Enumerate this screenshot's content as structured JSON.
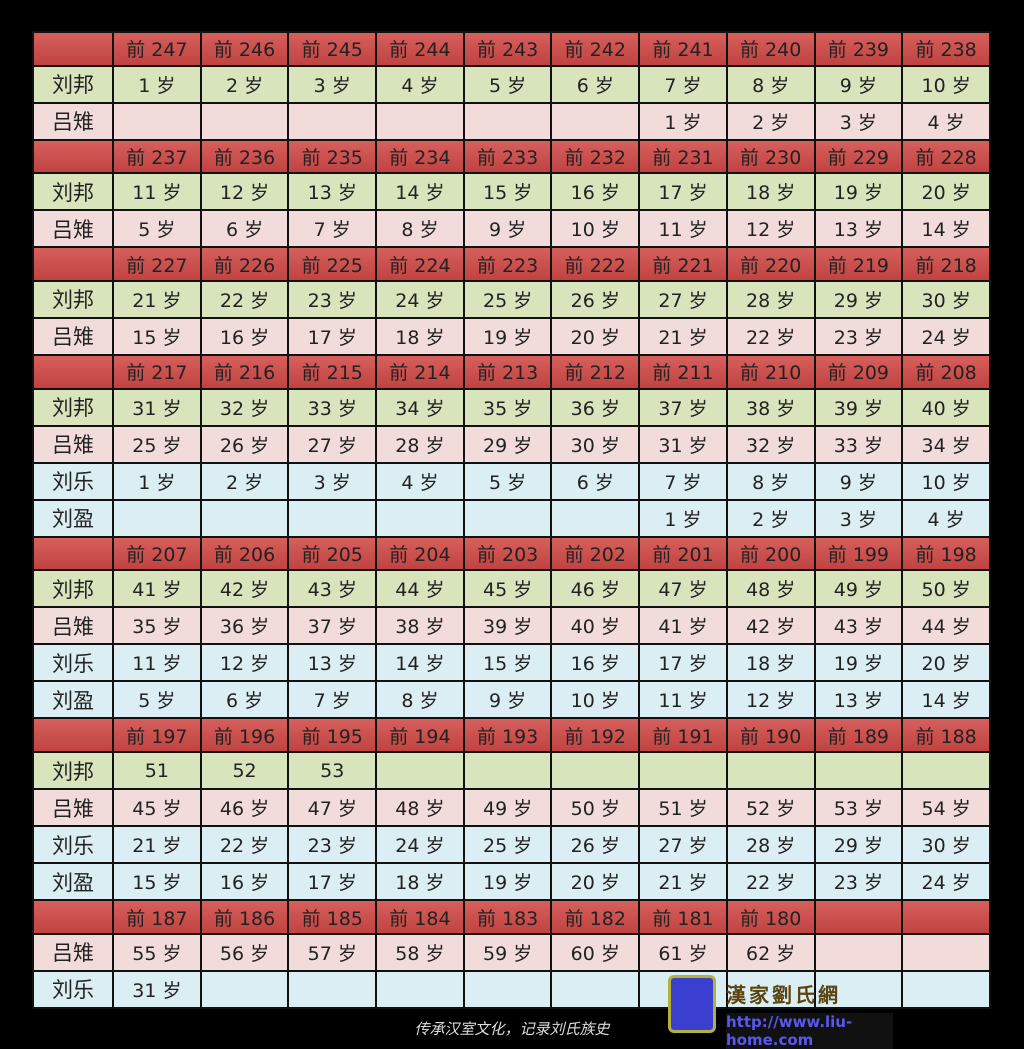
{
  "colors": {
    "header": "#c9504f",
    "liubang": "#d8e4bc",
    "lvzhi": "#f2dcdb",
    "liule": "#dbeef3",
    "liuying": "#dbeef3"
  },
  "rows": [
    {
      "type": "h",
      "label": "",
      "cells": [
        "前 247",
        "前 246",
        "前 245",
        "前 244",
        "前 243",
        "前 242",
        "前 241",
        "前 240",
        "前 239",
        "前 238"
      ]
    },
    {
      "type": "liubang",
      "label": "刘邦",
      "cells": [
        "1 岁",
        "2 岁",
        "3 岁",
        "4 岁",
        "5 岁",
        "6 岁",
        "7 岁",
        "8 岁",
        "9 岁",
        "10 岁"
      ]
    },
    {
      "type": "lvzhi",
      "label": "吕雉",
      "cells": [
        "",
        "",
        "",
        "",
        "",
        "",
        "1 岁",
        "2 岁",
        "3 岁",
        "4 岁"
      ]
    },
    {
      "type": "h",
      "label": "",
      "cells": [
        "前 237",
        "前 236",
        "前 235",
        "前 234",
        "前 233",
        "前 232",
        "前 231",
        "前 230",
        "前 229",
        "前 228"
      ]
    },
    {
      "type": "liubang",
      "label": "刘邦",
      "cells": [
        "11 岁",
        "12 岁",
        "13 岁",
        "14 岁",
        "15 岁",
        "16 岁",
        "17 岁",
        "18 岁",
        "19 岁",
        "20 岁"
      ]
    },
    {
      "type": "lvzhi",
      "label": "吕雉",
      "cells": [
        "5 岁",
        "6 岁",
        "7 岁",
        "8 岁",
        "9 岁",
        "10 岁",
        "11 岁",
        "12 岁",
        "13 岁",
        "14 岁"
      ]
    },
    {
      "type": "h",
      "label": "",
      "cells": [
        "前 227",
        "前 226",
        "前 225",
        "前 224",
        "前 223",
        "前 222",
        "前 221",
        "前 220",
        "前 219",
        "前 218"
      ]
    },
    {
      "type": "liubang",
      "label": "刘邦",
      "cells": [
        "21 岁",
        "22 岁",
        "23 岁",
        "24 岁",
        "25 岁",
        "26 岁",
        "27 岁",
        "28 岁",
        "29 岁",
        "30 岁"
      ]
    },
    {
      "type": "lvzhi",
      "label": "吕雉",
      "cells": [
        "15 岁",
        "16 岁",
        "17 岁",
        "18 岁",
        "19 岁",
        "20 岁",
        "21 岁",
        "22 岁",
        "23 岁",
        "24 岁"
      ]
    },
    {
      "type": "h",
      "label": "",
      "cells": [
        "前 217",
        "前 216",
        "前 215",
        "前 214",
        "前 213",
        "前 212",
        "前 211",
        "前 210",
        "前 209",
        "前 208"
      ]
    },
    {
      "type": "liubang",
      "label": "刘邦",
      "cells": [
        "31 岁",
        "32 岁",
        "33 岁",
        "34 岁",
        "35 岁",
        "36 岁",
        "37 岁",
        "38 岁",
        "39 岁",
        "40 岁"
      ]
    },
    {
      "type": "lvzhi",
      "label": "吕雉",
      "cells": [
        "25 岁",
        "26 岁",
        "27 岁",
        "28 岁",
        "29 岁",
        "30 岁",
        "31 岁",
        "32 岁",
        "33 岁",
        "34 岁"
      ]
    },
    {
      "type": "liule",
      "label": "刘乐",
      "cells": [
        "1 岁",
        "2 岁",
        "3 岁",
        "4 岁",
        "5 岁",
        "6 岁",
        "7 岁",
        "8 岁",
        "9 岁",
        "10 岁"
      ]
    },
    {
      "type": "liuying",
      "label": "刘盈",
      "cells": [
        "",
        "",
        "",
        "",
        "",
        "",
        "1 岁",
        "2 岁",
        "3 岁",
        "4 岁"
      ]
    },
    {
      "type": "h",
      "label": "",
      "cells": [
        "前 207",
        "前 206",
        "前 205",
        "前 204",
        "前 203",
        "前 202",
        "前 201",
        "前 200",
        "前 199",
        "前 198"
      ]
    },
    {
      "type": "liubang",
      "label": "刘邦",
      "cells": [
        "41 岁",
        "42 岁",
        "43 岁",
        "44 岁",
        "45 岁",
        "46 岁",
        "47 岁",
        "48 岁",
        "49 岁",
        "50 岁"
      ]
    },
    {
      "type": "lvzhi",
      "label": "吕雉",
      "cells": [
        "35 岁",
        "36 岁",
        "37 岁",
        "38 岁",
        "39 岁",
        "40 岁",
        "41 岁",
        "42 岁",
        "43 岁",
        "44 岁"
      ]
    },
    {
      "type": "liule",
      "label": "刘乐",
      "cells": [
        "11 岁",
        "12 岁",
        "13 岁",
        "14 岁",
        "15 岁",
        "16 岁",
        "17 岁",
        "18 岁",
        "19 岁",
        "20 岁"
      ]
    },
    {
      "type": "liuying",
      "label": "刘盈",
      "cells": [
        "5 岁",
        "6 岁",
        "7 岁",
        "8 岁",
        "9 岁",
        "10 岁",
        "11 岁",
        "12 岁",
        "13 岁",
        "14 岁"
      ]
    },
    {
      "type": "h",
      "label": "",
      "cells": [
        "前 197",
        "前 196",
        "前 195",
        "前 194",
        "前 193",
        "前 192",
        "前 191",
        "前 190",
        "前 189",
        "前 188"
      ]
    },
    {
      "type": "liubang",
      "label": "刘邦",
      "cells": [
        "51",
        "52",
        "53",
        "",
        "",
        "",
        "",
        "",
        "",
        ""
      ]
    },
    {
      "type": "lvzhi",
      "label": "吕雉",
      "cells": [
        "45 岁",
        "46 岁",
        "47 岁",
        "48 岁",
        "49 岁",
        "50 岁",
        "51 岁",
        "52 岁",
        "53 岁",
        "54 岁"
      ]
    },
    {
      "type": "liule",
      "label": "刘乐",
      "cells": [
        "21 岁",
        "22 岁",
        "23 岁",
        "24 岁",
        "25 岁",
        "26 岁",
        "27 岁",
        "28 岁",
        "29 岁",
        "30 岁"
      ]
    },
    {
      "type": "liuying",
      "label": "刘盈",
      "cells": [
        "15 岁",
        "16 岁",
        "17 岁",
        "18 岁",
        "19 岁",
        "20 岁",
        "21 岁",
        "22 岁",
        "23 岁",
        "24 岁"
      ]
    },
    {
      "type": "h",
      "label": "",
      "cells": [
        "前 187",
        "前 186",
        "前 185",
        "前 184",
        "前 183",
        "前 182",
        "前 181",
        "前 180",
        "",
        ""
      ]
    },
    {
      "type": "lvzhi",
      "label": "吕雉",
      "cells": [
        "55 岁",
        "56 岁",
        "57 岁",
        "58 岁",
        "59 岁",
        "60 岁",
        "61 岁",
        "62 岁",
        "",
        ""
      ]
    },
    {
      "type": "liule",
      "label": "刘乐",
      "cells": [
        "31 岁",
        "",
        "",
        "",
        "",
        "",
        "",
        "",
        "",
        ""
      ]
    }
  ],
  "footer": {
    "caption": "传承汉室文化，记录刘氏族史",
    "logo_name": "漢家劉氏網",
    "logo_url": "http://www.liu-home.com"
  }
}
